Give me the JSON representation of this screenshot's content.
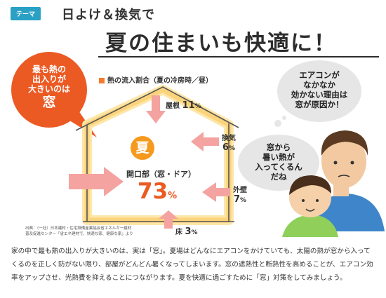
{
  "header": {
    "theme_tag": "テーマ",
    "subtitle": "日よけ＆換気で",
    "title": "夏の住まいも快適に！"
  },
  "callout": {
    "line1": "最も熱の",
    "line2": "出入りが",
    "line3": "大きいのは",
    "big": "窓"
  },
  "diagram": {
    "legend": "熱の流入割合（夏の冷房時／昼）",
    "center_symbol": "夏",
    "items": [
      {
        "label": "屋根",
        "value": "11",
        "unit": "%"
      },
      {
        "label": "換気",
        "value": "6",
        "unit": "%"
      },
      {
        "label": "外壁",
        "value": "7",
        "unit": "%"
      },
      {
        "label": "床",
        "value": "3",
        "unit": "%"
      }
    ],
    "opening": {
      "label": "開口部（窓・ドア）",
      "value": "73",
      "unit": "%"
    },
    "source_line1": "出典：（一社）日本建材・住宅設備産業協会省エネルギー建材",
    "source_line2": "普及促進センター「省エネ建材で、快適な家、健康な家」より"
  },
  "thoughts": {
    "q1": "エアコンが",
    "q2": "なかなか",
    "q3": "効かない理由は",
    "q4": "窓が原因か！",
    "k1": "窓から",
    "k2": "暑い熱が",
    "k3": "入ってくるん",
    "k4": "だね"
  },
  "body": {
    "paragraph": "家の中で最も熱の出入りが大きいのは、実は「窓」。夏場はどんなにエアコンをかけていても、太陽の熱が窓から入ってくるのを正しく防がない限り、部屋がどんどん暑くなってしまいます。窓の遮熱性と断熱性を高めることが、エアコン効率をアップさせ、光熱費を抑えることにつながります。夏を快適に過ごすために「窓」対策をしてみましょう。"
  },
  "colors": {
    "accent": "#ec5a24",
    "arrow": "#f4a3a0",
    "glow": "#fbd37a",
    "teal": "#2aa0c4"
  }
}
